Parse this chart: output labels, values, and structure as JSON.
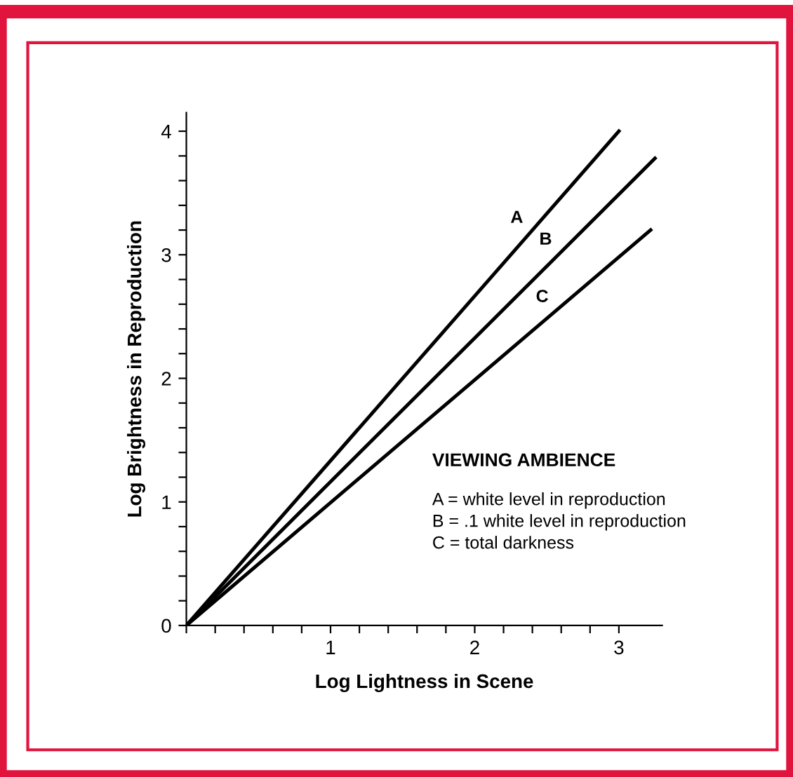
{
  "chart_data": {
    "type": "line",
    "xlabel": "Log Lightness in Scene",
    "ylabel": "Log Brightness in Reproduction",
    "series": [
      {
        "name": "A",
        "color": "#000000",
        "x": [
          0,
          3.0
        ],
        "values": [
          0,
          4.0
        ]
      },
      {
        "name": "B",
        "color": "#000000",
        "x": [
          0,
          3.25
        ],
        "values": [
          0,
          3.78
        ]
      },
      {
        "name": "C",
        "color": "#000000",
        "x": [
          0,
          3.22
        ],
        "values": [
          0,
          3.2
        ]
      }
    ],
    "xlim": [
      0,
      3.3
    ],
    "ylim": [
      0,
      4.15
    ],
    "xticks": [
      {
        "value": 0,
        "label": null
      },
      {
        "value": 0.2,
        "label": null
      },
      {
        "value": 0.4,
        "label": null
      },
      {
        "value": 0.6,
        "label": null
      },
      {
        "value": 0.8,
        "label": null
      },
      1,
      {
        "value": 1.2,
        "label": null
      },
      {
        "value": 1.4,
        "label": null
      },
      {
        "value": 1.6,
        "label": null
      },
      {
        "value": 1.8,
        "label": null
      },
      2,
      {
        "value": 2.2,
        "label": null
      },
      {
        "value": 2.4,
        "label": null
      },
      {
        "value": 2.6,
        "label": null
      },
      {
        "value": 2.8,
        "label": null
      },
      3
    ],
    "yticks": [
      0,
      {
        "value": 0.2,
        "label": null
      },
      {
        "value": 0.4,
        "label": null
      },
      {
        "value": 0.6,
        "label": null
      },
      {
        "value": 0.8,
        "label": null
      },
      1,
      {
        "value": 1.2,
        "label": null
      },
      {
        "value": 1.4,
        "label": null
      },
      {
        "value": 1.6,
        "label": null
      },
      {
        "value": 1.8,
        "label": null
      },
      2,
      {
        "value": 2.2,
        "label": null
      },
      {
        "value": 2.4,
        "label": null
      },
      {
        "value": 2.6,
        "label": null
      },
      {
        "value": 2.8,
        "label": null
      },
      3,
      {
        "value": 3.2,
        "label": null
      },
      {
        "value": 3.4,
        "label": null
      },
      {
        "value": 3.6,
        "label": null
      },
      {
        "value": 3.8,
        "label": null
      },
      4
    ],
    "grid": false,
    "legend": false,
    "marker": "none",
    "line_style": "solid",
    "annotations": [
      "VIEWING AMBIENCE",
      "A = white level in reproduction",
      "B = .1 white level in reproduction",
      "C = total darkness"
    ]
  }
}
